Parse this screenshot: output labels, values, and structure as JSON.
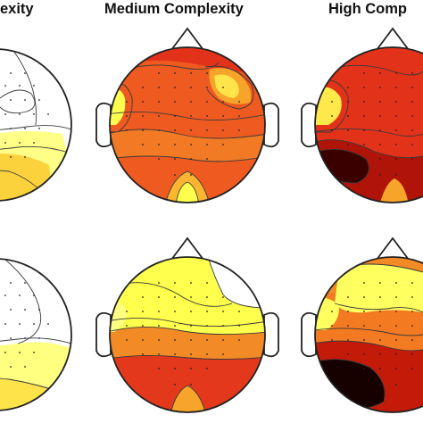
{
  "figure": {
    "columns": [
      {
        "title": "exity"
      },
      {
        "title": "Medium Complexity"
      },
      {
        "title": "High Comp"
      }
    ]
  },
  "colors": {
    "white": "#ffffff",
    "yellow": "#ffff4d",
    "orange": "#f5a020",
    "orange_red": "#ef6a22",
    "red": "#e23218",
    "dark_red": "#7a0000",
    "black": "#140000",
    "contour": "#3a3a3a",
    "outline": "#222222"
  },
  "maps": [
    {
      "id": "r1-low",
      "palette": [
        "#ffffff",
        "#fefefe",
        "#ffff80",
        "#f6c93a"
      ]
    },
    {
      "id": "r1-med",
      "palette": [
        "#e8321a",
        "#f47a22",
        "#ffe84a",
        "#ffff4d"
      ]
    },
    {
      "id": "r1-high",
      "palette": [
        "#e3321a",
        "#f47a22",
        "#ba1208",
        "#3a0000"
      ]
    },
    {
      "id": "r2-low",
      "palette": [
        "#ffffff",
        "#ffffff",
        "#ffff80",
        "#ffe34a"
      ]
    },
    {
      "id": "r2-med",
      "palette": [
        "#ffff4d",
        "#ffe044",
        "#f27022",
        "#e33a1c"
      ]
    },
    {
      "id": "r2-high",
      "palette": [
        "#ffff60",
        "#f47a22",
        "#c41a0a",
        "#160000"
      ]
    }
  ]
}
